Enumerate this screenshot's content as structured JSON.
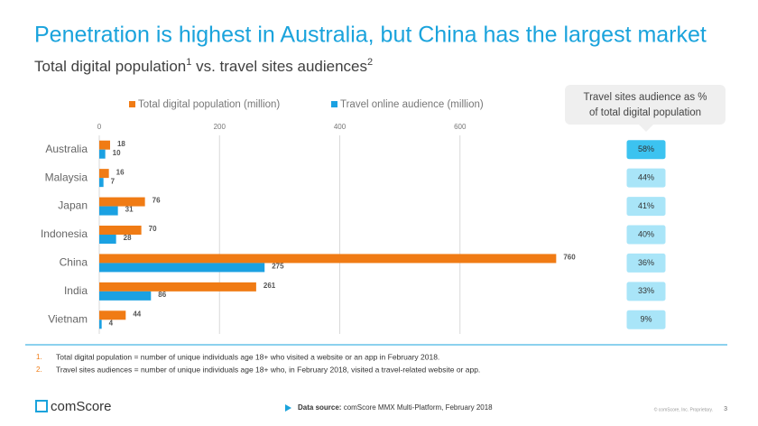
{
  "chart_data": {
    "type": "bar",
    "orientation": "horizontal",
    "title": "Penetration is highest in Australia, but China has the largest market",
    "subtitle": {
      "part1": "Total digital population",
      "sup1": "1",
      "part2": " vs. travel sites audiences",
      "sup2": "2"
    },
    "categories": [
      "Australia",
      "Malaysia",
      "Japan",
      "Indonesia",
      "China",
      "India",
      "Vietnam"
    ],
    "series": [
      {
        "name": "Total digital population (million)",
        "color": "#f07b14",
        "values": [
          18,
          16,
          76,
          70,
          760,
          261,
          44
        ]
      },
      {
        "name": "Travel online audience (million)",
        "color": "#1ba1e2",
        "values": [
          10,
          7,
          31,
          28,
          275,
          86,
          4
        ]
      }
    ],
    "xlim": [
      0,
      800
    ],
    "xticks": [
      0,
      200,
      400,
      600
    ],
    "grid": true,
    "legend": "top",
    "share": {
      "title_lines": [
        "Travel sites audience as %",
        "of total digital population"
      ],
      "values": [
        58,
        44,
        41,
        40,
        36,
        33,
        9
      ],
      "value_labels": [
        "58%",
        "44%",
        "41%",
        "40%",
        "36%",
        "33%",
        "9%"
      ],
      "highlight_color": "#3cc3f0",
      "color": "#a9e5f8"
    },
    "footnotes": [
      {
        "number": "1.",
        "text": "Total digital population = number of unique individuals age 18+ who visited a website or an app in February 2018."
      },
      {
        "number": "2.",
        "text": "Travel sites audiences  = number of unique individuals age 18+ who, in February 2018, visited a travel-related website or app."
      }
    ],
    "source": {
      "label": "Data source:",
      "text": " comScore MMX Multi-Platform, February 2018"
    },
    "logo": "comScore",
    "copyright": "© comScore, Inc. Proprietary.",
    "page": "3"
  }
}
